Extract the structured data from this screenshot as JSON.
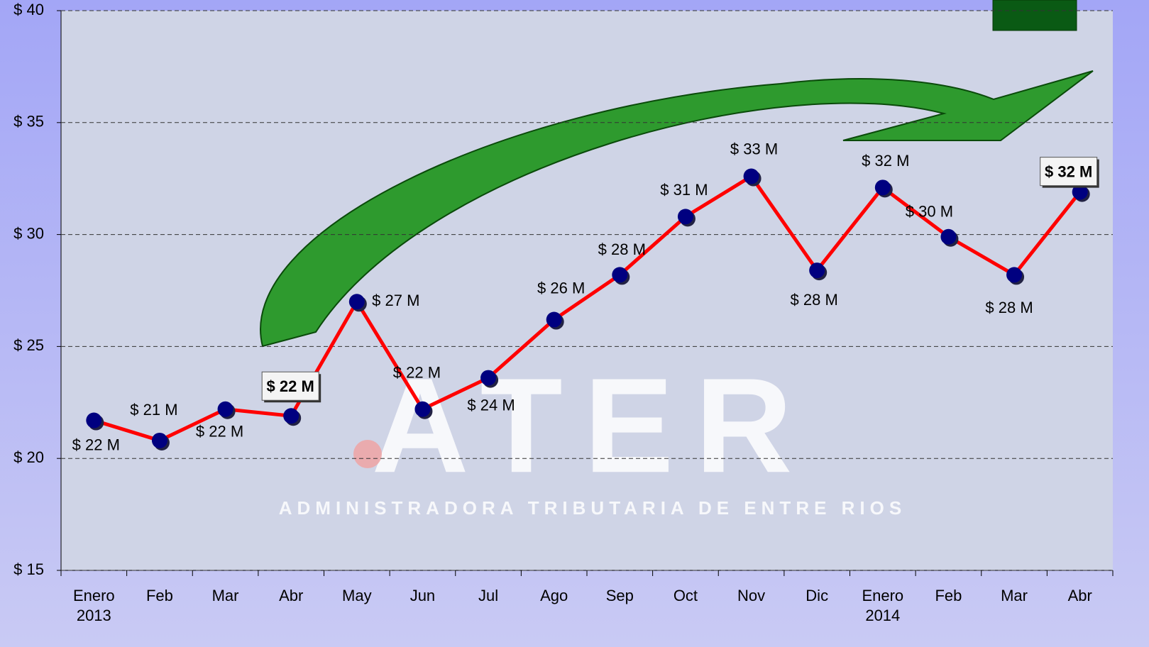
{
  "chart_data": {
    "type": "line",
    "categories": [
      "Enero 2013",
      "Feb",
      "Mar",
      "Abr",
      "May",
      "Jun",
      "Jul",
      "Ago",
      "Sep",
      "Oct",
      "Nov",
      "Dic",
      "Enero 2014",
      "Feb",
      "Mar",
      "Abr"
    ],
    "series": [
      {
        "color": "#ff0000",
        "marker_color": "#000080",
        "values": [
          21.7,
          20.8,
          22.2,
          21.9,
          27.0,
          22.2,
          23.6,
          26.2,
          28.2,
          30.8,
          32.6,
          28.4,
          32.1,
          29.9,
          28.2,
          31.9
        ],
        "value_labels": [
          "$ 22 M",
          "$ 21 M",
          "$ 22 M",
          "$ 22 M",
          "$ 27 M",
          "$ 22 M",
          "$ 24 M",
          "$ 26 M",
          "$ 28 M",
          "$ 31 M",
          "$ 33 M",
          "$ 28 M",
          "$ 32 M",
          "$ 30 M",
          "$ 28 M",
          "$ 32 M"
        ]
      }
    ],
    "ylim": [
      15,
      40
    ],
    "yticks": [
      {
        "value": 15,
        "label": "$ 15"
      },
      {
        "value": 20,
        "label": "$ 20"
      },
      {
        "value": 25,
        "label": "$ 25"
      },
      {
        "value": 30,
        "label": "$ 30"
      },
      {
        "value": 35,
        "label": "$ 35"
      },
      {
        "value": 40,
        "label": "$ 40"
      }
    ],
    "grid": true,
    "annotations": [
      "ATER",
      "ADMINISTRADORA TRIBUTARIA DE ENTRE RIOS"
    ]
  }
}
